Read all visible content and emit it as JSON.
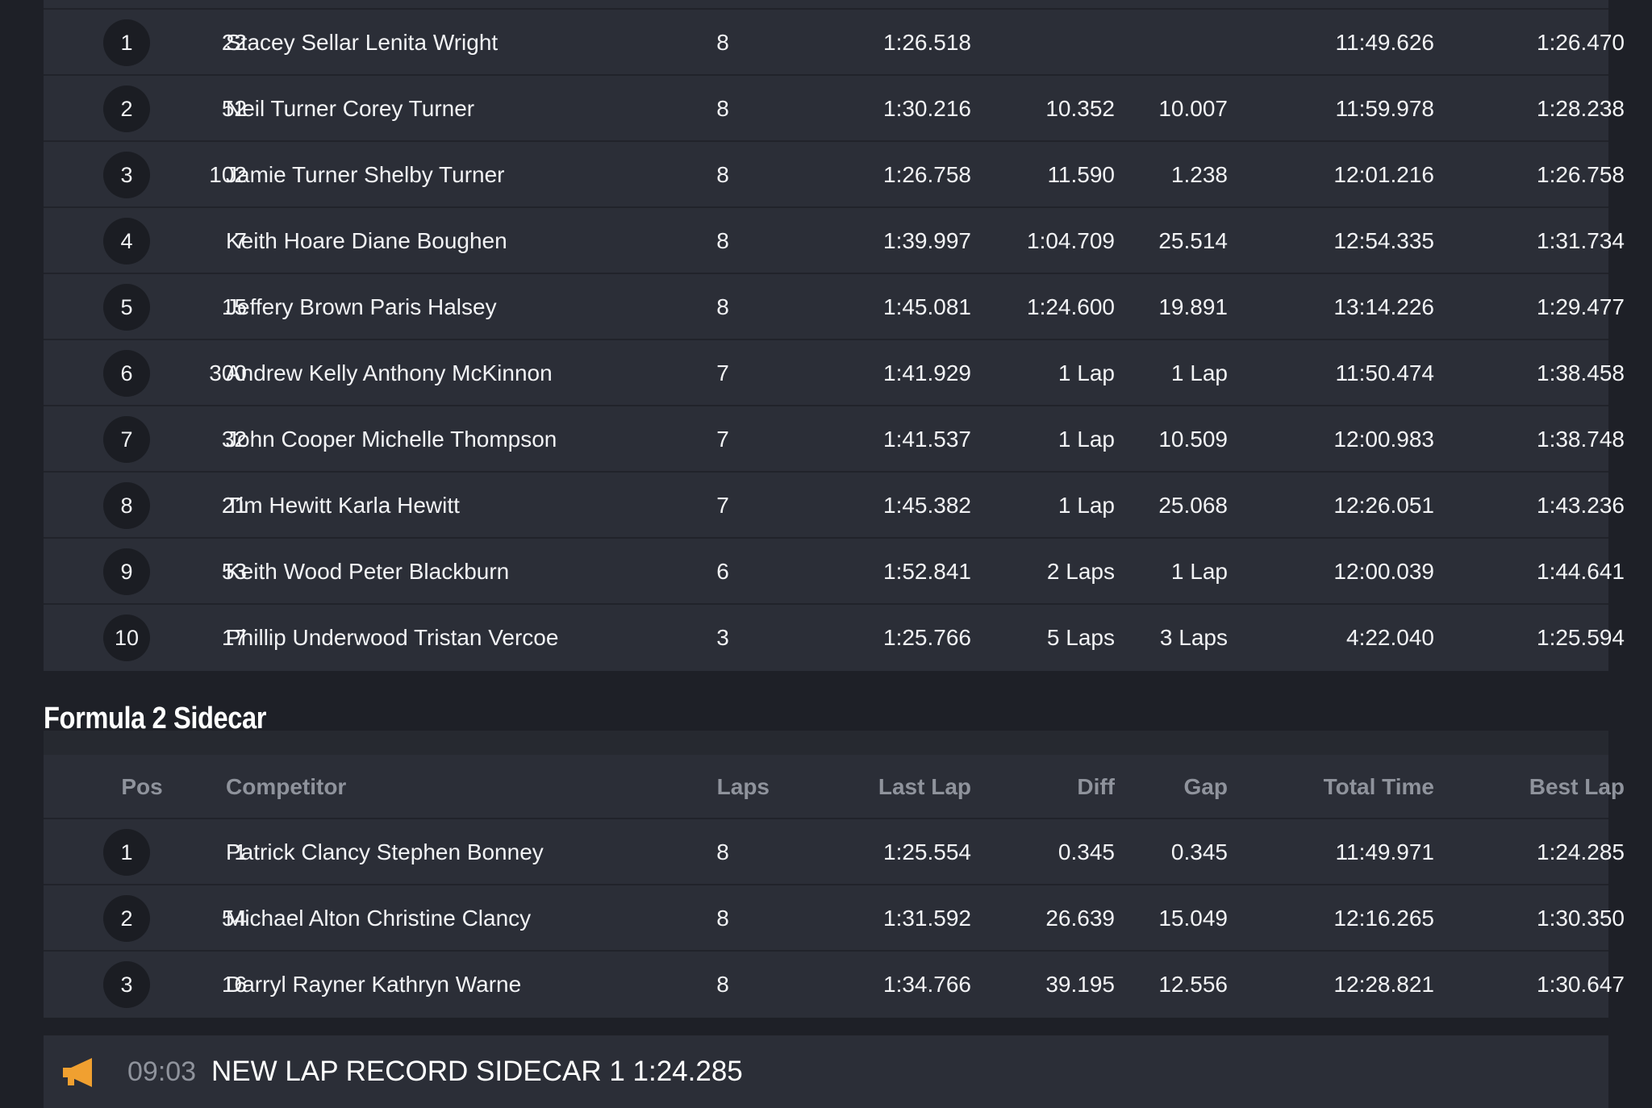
{
  "race1": {
    "rows": [
      {
        "pos": "1",
        "num": "22",
        "name": "Stacey Sellar Lenita Wright",
        "laps": "8",
        "last": "1:26.518",
        "diff": "",
        "gap": "",
        "total": "11:49.626",
        "best": "1:26.470"
      },
      {
        "pos": "2",
        "num": "52",
        "name": "Neil Turner Corey Turner",
        "laps": "8",
        "last": "1:30.216",
        "diff": "10.352",
        "gap": "10.007",
        "total": "11:59.978",
        "best": "1:28.238"
      },
      {
        "pos": "3",
        "num": "102",
        "name": "Jamie Turner Shelby Turner",
        "laps": "8",
        "last": "1:26.758",
        "diff": "11.590",
        "gap": "1.238",
        "total": "12:01.216",
        "best": "1:26.758"
      },
      {
        "pos": "4",
        "num": "7",
        "name": "Keith Hoare Diane Boughen",
        "laps": "8",
        "last": "1:39.997",
        "diff": "1:04.709",
        "gap": "25.514",
        "total": "12:54.335",
        "best": "1:31.734"
      },
      {
        "pos": "5",
        "num": "15",
        "name": "Jeffery Brown Paris Halsey",
        "laps": "8",
        "last": "1:45.081",
        "diff": "1:24.600",
        "gap": "19.891",
        "total": "13:14.226",
        "best": "1:29.477"
      },
      {
        "pos": "6",
        "num": "300",
        "name": "Andrew Kelly Anthony McKinnon",
        "laps": "7",
        "last": "1:41.929",
        "diff": "1 Lap",
        "gap": "1 Lap",
        "total": "11:50.474",
        "best": "1:38.458"
      },
      {
        "pos": "7",
        "num": "32",
        "name": "John Cooper Michelle Thompson",
        "laps": "7",
        "last": "1:41.537",
        "diff": "1 Lap",
        "gap": "10.509",
        "total": "12:00.983",
        "best": "1:38.748"
      },
      {
        "pos": "8",
        "num": "21",
        "name": "Tim Hewitt Karla Hewitt",
        "laps": "7",
        "last": "1:45.382",
        "diff": "1 Lap",
        "gap": "25.068",
        "total": "12:26.051",
        "best": "1:43.236"
      },
      {
        "pos": "9",
        "num": "53",
        "name": "Keith Wood Peter Blackburn",
        "laps": "6",
        "last": "1:52.841",
        "diff": "2 Laps",
        "gap": "1 Lap",
        "total": "12:00.039",
        "best": "1:44.641"
      },
      {
        "pos": "10",
        "num": "17",
        "name": "Phillip Underwood Tristan Vercoe",
        "laps": "3",
        "last": "1:25.766",
        "diff": "5 Laps",
        "gap": "3 Laps",
        "total": "4:22.040",
        "best": "1:25.594"
      }
    ]
  },
  "race2": {
    "title": "Formula 2 Sidecar",
    "headers": {
      "pos": "Pos",
      "competitor": "Competitor",
      "laps": "Laps",
      "last": "Last Lap",
      "diff": "Diff",
      "gap": "Gap",
      "total": "Total Time",
      "best": "Best Lap"
    },
    "rows": [
      {
        "pos": "1",
        "num": "1",
        "name": "Patrick Clancy Stephen Bonney",
        "laps": "8",
        "last": "1:25.554",
        "diff": "0.345",
        "gap": "0.345",
        "total": "11:49.971",
        "best": "1:24.285"
      },
      {
        "pos": "2",
        "num": "54",
        "name": "Michael Alton Christine Clancy",
        "laps": "8",
        "last": "1:31.592",
        "diff": "26.639",
        "gap": "15.049",
        "total": "12:16.265",
        "best": "1:30.350"
      },
      {
        "pos": "3",
        "num": "16",
        "name": "Darryl Rayner Kathryn Warne",
        "laps": "8",
        "last": "1:34.766",
        "diff": "39.195",
        "gap": "12.556",
        "total": "12:28.821",
        "best": "1:30.647"
      }
    ]
  },
  "notice": {
    "icon": "megaphone-icon",
    "time": "09:03",
    "text": "NEW LAP RECORD SIDECAR 1 1:24.285",
    "icon_color": "#f0a030"
  },
  "colors": {
    "background": "#1e2027",
    "panel": "#2b2e37",
    "badge": "#1b1d23",
    "header_text": "#8f939c"
  }
}
